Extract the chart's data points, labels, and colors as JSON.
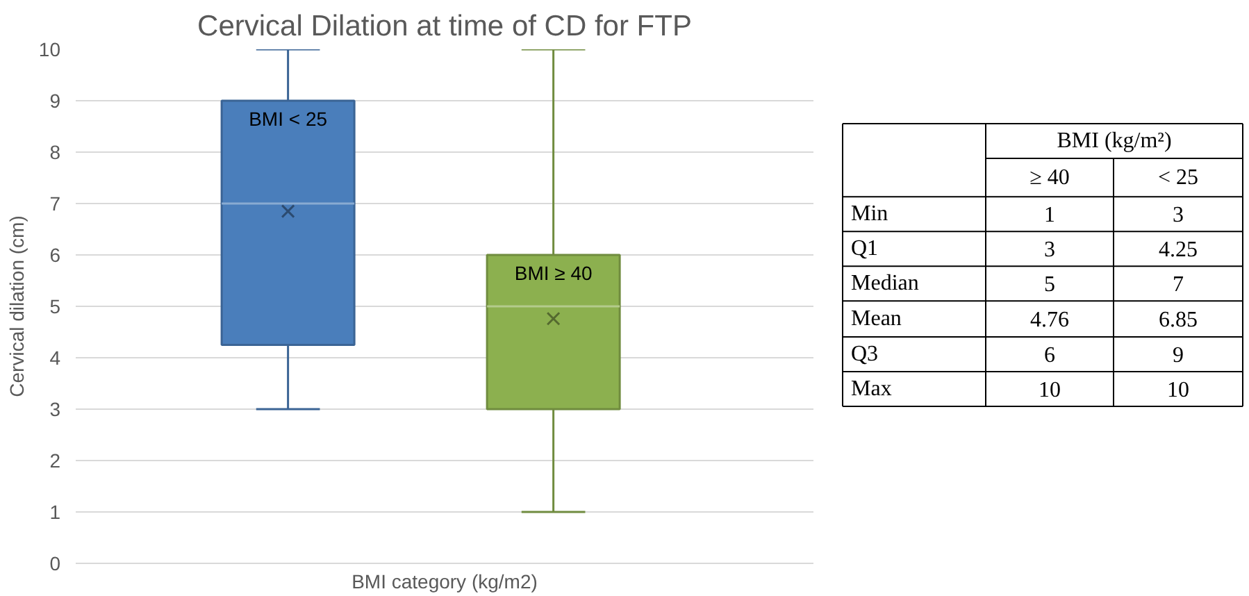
{
  "chart_data": {
    "type": "box",
    "title": "Cervical Dilation at time of CD for FTP",
    "xlabel": "BMI category (kg/m2)",
    "ylabel": "Cervical dilation (cm)",
    "categories": [
      "BMI < 25",
      "BMI ≥ 40"
    ],
    "colors": [
      "#4a7ebb",
      "#8cb04f"
    ],
    "boxes": [
      {
        "low": 3,
        "q1": 4.25,
        "median": 7,
        "q3": 9,
        "high": 10,
        "mean": 6.85
      },
      {
        "low": 1,
        "q1": 3,
        "median": 5,
        "q3": 6,
        "high": 10,
        "mean": 4.76
      }
    ],
    "ylim": [
      0,
      10
    ],
    "yticks": [
      0,
      1,
      2,
      3,
      4,
      5,
      6,
      7,
      8,
      9,
      10
    ],
    "grid": "y",
    "annotations": [
      "BMI (kg/m²)",
      "≥ 40",
      "< 25",
      "Min",
      "1",
      "3",
      "Q1",
      "3",
      "4.25",
      "Median",
      "5",
      "7",
      "Mean",
      "4.76",
      "6.85",
      "Q3",
      "6",
      "9",
      "Max",
      "10",
      "10"
    ]
  }
}
